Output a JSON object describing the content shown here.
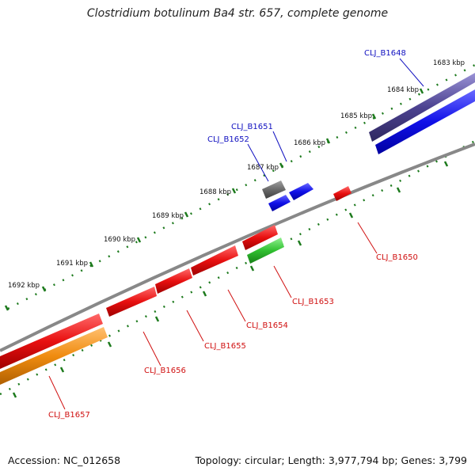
{
  "title": "Clostridium botulinum Ba4 str. 657, complete genome",
  "footer": {
    "accession": "Accession: NC_012658",
    "summary": "Topology: circular; Length: 3,977,794 bp; Genes: 3,799"
  },
  "kbp_labels": [
    "1683 kbp",
    "1684 kbp",
    "1685 kbp",
    "1686 kbp",
    "1687 kbp",
    "1688 kbp",
    "1689 kbp",
    "1690 kbp",
    "1691 kbp",
    "1692 kbp"
  ],
  "genes": [
    {
      "id": "CLJ_B1648",
      "strand": "forward",
      "color": "#5a4f9e"
    },
    {
      "id": "CLJ_B1651",
      "strand": "forward",
      "color": "#1010e8"
    },
    {
      "id": "CLJ_B1652",
      "strand": "forward",
      "color": "#707070"
    },
    {
      "id": "CLJ_B1650",
      "strand": "reverse",
      "color": "#e81010"
    },
    {
      "id": "CLJ_B1653",
      "strand": "reverse",
      "color": "#30c030"
    },
    {
      "id": "CLJ_B1654",
      "strand": "reverse",
      "color": "#e81010"
    },
    {
      "id": "CLJ_B1655",
      "strand": "reverse",
      "color": "#e81010"
    },
    {
      "id": "CLJ_B1656",
      "strand": "reverse",
      "color": "#e81010"
    },
    {
      "id": "CLJ_B1657",
      "strand": "reverse",
      "color": "#f08c10"
    }
  ],
  "colors": {
    "backbone": "#888888",
    "ticks": "#1d7a1d",
    "forward_label": "#1010c0",
    "reverse_label": "#d01010"
  }
}
